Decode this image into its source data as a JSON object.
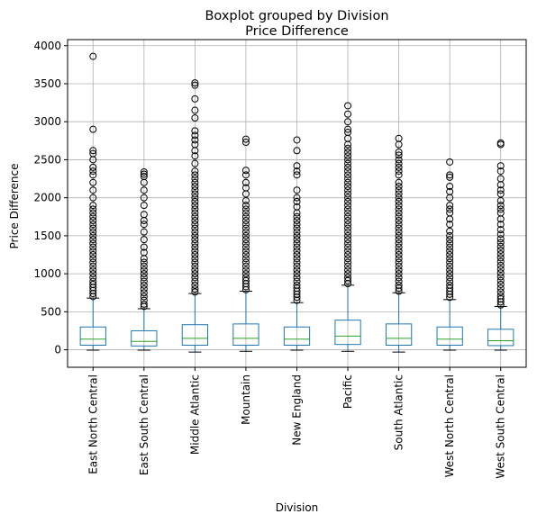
{
  "chart_data": {
    "type": "boxplot",
    "title": "Boxplot grouped by Division",
    "subtitle": "Price Difference",
    "xlabel": "Division",
    "ylabel": "Price Difference",
    "ylim": [
      -230,
      4080
    ],
    "yticks": [
      0,
      500,
      1000,
      1500,
      2000,
      2500,
      3000,
      3500,
      4000
    ],
    "grid": true,
    "colors": {
      "box": "#1f77b4",
      "median": "#2ca02c",
      "whisker": "#000000",
      "outlier": "#000000",
      "grid": "#b0b0b0"
    },
    "categories": [
      "East North Central",
      "East South Central",
      "Middle Atlantic",
      "Mountain",
      "New England",
      "Pacific",
      "South Atlantic",
      "West North Central",
      "West South Central"
    ],
    "boxes": [
      {
        "q1": 60,
        "median": 140,
        "q3": 300,
        "whisker_low": -5,
        "whisker_high": 680,
        "outliers": [
          700,
          740,
          780,
          820,
          860,
          900,
          950,
          1000,
          1050,
          1100,
          1150,
          1200,
          1250,
          1300,
          1350,
          1400,
          1450,
          1500,
          1550,
          1600,
          1650,
          1700,
          1750,
          1800,
          1850,
          1900,
          2000,
          2100,
          2200,
          2300,
          2350,
          2400,
          2500,
          2580,
          2620,
          2900,
          3860
        ]
      },
      {
        "q1": 50,
        "median": 110,
        "q3": 250,
        "whisker_low": -5,
        "whisker_high": 540,
        "outliers": [
          570,
          600,
          650,
          700,
          750,
          800,
          850,
          900,
          950,
          1000,
          1050,
          1100,
          1150,
          1200,
          1280,
          1350,
          1450,
          1550,
          1650,
          1700,
          1780,
          1900,
          2000,
          2100,
          2200,
          2280,
          2310,
          2340
        ]
      },
      {
        "q1": 60,
        "median": 150,
        "q3": 330,
        "whisker_low": -30,
        "whisker_high": 740,
        "outliers": [
          760,
          800,
          850,
          900,
          950,
          1000,
          1050,
          1100,
          1150,
          1200,
          1250,
          1300,
          1350,
          1400,
          1450,
          1500,
          1550,
          1600,
          1650,
          1700,
          1750,
          1800,
          1850,
          1900,
          1950,
          2000,
          2050,
          2100,
          2150,
          2200,
          2250,
          2300,
          2350,
          2450,
          2550,
          2620,
          2700,
          2760,
          2820,
          2880,
          3050,
          3150,
          3300,
          3480,
          3510
        ]
      },
      {
        "q1": 60,
        "median": 150,
        "q3": 340,
        "whisker_low": -20,
        "whisker_high": 770,
        "outliers": [
          790,
          830,
          870,
          910,
          950,
          1000,
          1050,
          1100,
          1150,
          1200,
          1250,
          1300,
          1350,
          1400,
          1450,
          1500,
          1550,
          1600,
          1650,
          1700,
          1750,
          1800,
          1850,
          1900,
          1960,
          2050,
          2130,
          2200,
          2300,
          2360,
          2730,
          2770
        ]
      },
      {
        "q1": 60,
        "median": 140,
        "q3": 300,
        "whisker_low": -5,
        "whisker_high": 620,
        "outliers": [
          650,
          690,
          730,
          770,
          810,
          850,
          900,
          950,
          1000,
          1050,
          1100,
          1150,
          1200,
          1250,
          1300,
          1350,
          1400,
          1450,
          1500,
          1550,
          1600,
          1650,
          1700,
          1750,
          1800,
          1880,
          1950,
          2000,
          2100,
          2300,
          2350,
          2420,
          2620,
          2760
        ]
      },
      {
        "q1": 70,
        "median": 180,
        "q3": 390,
        "whisker_low": -20,
        "whisker_high": 850,
        "outliers": [
          870,
          910,
          950,
          1000,
          1050,
          1100,
          1150,
          1200,
          1250,
          1300,
          1350,
          1400,
          1450,
          1500,
          1550,
          1600,
          1650,
          1700,
          1750,
          1800,
          1850,
          1900,
          1950,
          2000,
          2050,
          2100,
          2150,
          2200,
          2250,
          2300,
          2350,
          2400,
          2450,
          2500,
          2550,
          2600,
          2650,
          2700,
          2780,
          2860,
          2900,
          3000,
          3100,
          3210
        ]
      },
      {
        "q1": 60,
        "median": 150,
        "q3": 340,
        "whisker_low": -30,
        "whisker_high": 750,
        "outliers": [
          770,
          810,
          850,
          900,
          950,
          1000,
          1050,
          1100,
          1150,
          1200,
          1250,
          1300,
          1350,
          1400,
          1450,
          1500,
          1550,
          1600,
          1650,
          1700,
          1750,
          1800,
          1850,
          1900,
          1950,
          2000,
          2050,
          2100,
          2150,
          2200,
          2300,
          2350,
          2400,
          2450,
          2500,
          2560,
          2600,
          2700,
          2780
        ]
      },
      {
        "q1": 60,
        "median": 140,
        "q3": 300,
        "whisker_low": -5,
        "whisker_high": 660,
        "outliers": [
          690,
          730,
          770,
          810,
          850,
          900,
          950,
          1000,
          1050,
          1100,
          1150,
          1200,
          1250,
          1300,
          1350,
          1400,
          1450,
          1500,
          1560,
          1650,
          1720,
          1800,
          1850,
          1900,
          2000,
          2080,
          2150,
          2270,
          2300,
          2470
        ]
      },
      {
        "q1": 55,
        "median": 120,
        "q3": 270,
        "whisker_low": -5,
        "whisker_high": 570,
        "outliers": [
          590,
          630,
          670,
          710,
          760,
          810,
          860,
          910,
          960,
          1010,
          1060,
          1110,
          1160,
          1210,
          1260,
          1310,
          1360,
          1410,
          1460,
          1520,
          1580,
          1650,
          1720,
          1800,
          1850,
          1900,
          1960,
          2050,
          2100,
          2170,
          2250,
          2350,
          2420,
          2700,
          2720
        ]
      }
    ]
  }
}
